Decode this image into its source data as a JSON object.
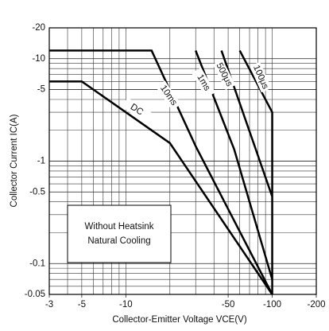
{
  "chart_data": {
    "type": "line",
    "xlabel": "Collector-Emitter Voltage VCE(V)",
    "ylabel": "Collector Current IC(A)",
    "annotations": [
      "Without Heatsink",
      "Natural Cooling"
    ],
    "log_x": true,
    "log_y": true,
    "grid": true,
    "xlim": [
      -3,
      -200
    ],
    "xticks": [
      -3,
      -5,
      -10,
      -50,
      -100,
      -200
    ],
    "ylim": [
      -0.05,
      -20
    ],
    "yticks": [
      -20,
      -10,
      -5,
      -1,
      -0.5,
      -0.1,
      -0.05
    ],
    "series": [
      {
        "name": "DC",
        "color": "#000000",
        "x": [
          -3,
          -5,
          -20,
          -100
        ],
        "values": [
          -6,
          -6,
          -1.5,
          -0.05
        ]
      },
      {
        "name": "10ms",
        "color": "#000000",
        "x": [
          -3,
          -15,
          -30,
          -100
        ],
        "values": [
          -12,
          -12,
          -1.4,
          -0.05
        ]
      },
      {
        "name": "1ms",
        "color": "#000000",
        "x": [
          -30,
          -55,
          -100
        ],
        "values": [
          -12,
          -1.3,
          -0.07
        ]
      },
      {
        "name": "500μs",
        "color": "#000000",
        "x": [
          -45,
          -100
        ],
        "values": [
          -12,
          -0.45
        ]
      },
      {
        "name": "100μs",
        "color": "#000000",
        "x": [
          -60,
          -100,
          -100
        ],
        "values": [
          -12,
          -3,
          -0.05
        ]
      }
    ]
  }
}
